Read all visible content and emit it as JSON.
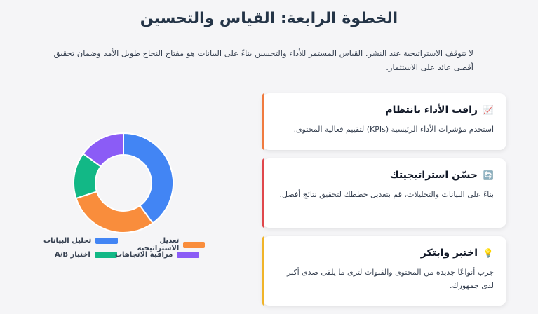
{
  "page": {
    "title": "الخطوة الرابعة: القياس والتحسين",
    "intro": "لا تتوقف الاستراتيجية عند النشر. القياس المستمر للأداء والتحسين بناءً على البيانات هو مفتاح النجاح طويل الأمد وضمان تحقيق أقصى عائد على الاستثمار."
  },
  "cards": [
    {
      "title": "راقب الأداء بانتظام",
      "icon": "chart-up-icon",
      "icon_glyph": "📈",
      "accent": "#f07b3f",
      "description": "استخدم مؤشرات الأداء الرئيسية (KPIs) لتقييم فعالية المحتوى."
    },
    {
      "title": "حسّن استراتيجيتك",
      "icon": "refresh-icon",
      "icon_glyph": "🔄",
      "accent": "#e0474c",
      "description": "بناءً على البيانات والتحليلات، قم بتعديل خططك لتحقيق نتائج أفضل."
    },
    {
      "title": "اختبر وابتكر",
      "icon": "lightbulb-icon",
      "icon_glyph": "💡",
      "accent": "#f0b429",
      "description": "جرب أنواعًا جديدة من المحتوى والقنوات لترى ما يلقى صدى أكبر لدى جمهورك."
    }
  ],
  "chart_data": {
    "type": "pie",
    "donut": true,
    "legend_position": "bottom",
    "series": [
      {
        "name": "تحليل البيانات",
        "value": 40,
        "color": "#4285f4"
      },
      {
        "name": "تعديل الاستراتيجية",
        "value": 30,
        "color": "#f98d3c"
      },
      {
        "name": "اختبار A/B",
        "value": 15,
        "color": "#12b886"
      },
      {
        "name": "مراقبة الاتجاهات",
        "value": 15,
        "color": "#8b5cf6"
      }
    ]
  }
}
